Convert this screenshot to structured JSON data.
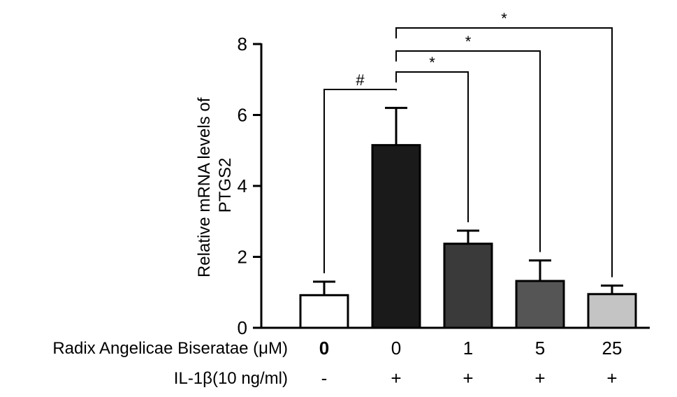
{
  "chart_data": {
    "type": "bar",
    "ylabel": [
      "Relative mRNA levels of",
      "PTGS2"
    ],
    "ylim": [
      0,
      8
    ],
    "yticks": [
      0,
      2,
      4,
      6,
      8
    ],
    "grid": false,
    "values": [
      0.92,
      5.15,
      2.37,
      1.32,
      0.95
    ],
    "errors": [
      0.38,
      1.05,
      0.37,
      0.58,
      0.24
    ],
    "bar_colors": [
      "#ffffff",
      "#1a1a1a",
      "#3a3a3a",
      "#555555",
      "#c4c4c4"
    ],
    "conditions": [
      {
        "label": "Radix Angelicae Biseratae (μM)",
        "values": [
          "0",
          "0",
          "1",
          "5",
          "25"
        ],
        "bold": [
          true,
          false,
          false,
          false,
          false
        ]
      },
      {
        "label": "IL-1β(10 ng/ml)",
        "values": [
          "-",
          "+",
          "+",
          "+",
          "+"
        ]
      }
    ],
    "significance": [
      {
        "from": 0,
        "to": 1,
        "label": "#"
      },
      {
        "from": 1,
        "to": 2,
        "label": "*"
      },
      {
        "from": 1,
        "to": 3,
        "label": "*"
      },
      {
        "from": 1,
        "to": 4,
        "label": "*"
      }
    ]
  }
}
